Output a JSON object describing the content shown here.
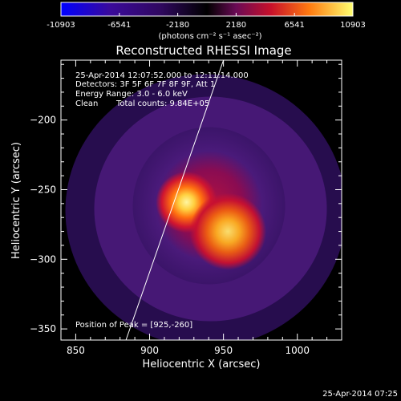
{
  "image": {
    "title": "Reconstructed RHESSI Image",
    "time_range": "25-Apr-2014 12:07:52.000 to 12:11:14.000",
    "detectors": "Detectors: 3F 5F 6F 7F 8F 9F, Att 1",
    "energy_range": "Energy Range: 3.0 - 6.0 keV",
    "algorithm": "Clean",
    "total_counts": "Total counts: 9.84E+05",
    "peak_position": "Position of Peak = [925,-260]",
    "xlabel": "Heliocentric X (arcsec)",
    "ylabel": "Heliocentric Y (arcsec)",
    "x_ticks": [
      "850",
      "900",
      "950",
      "1000"
    ],
    "y_ticks": [
      "-200",
      "-250",
      "-300",
      "-350"
    ],
    "x_range": [
      840,
      1030
    ],
    "y_range": [
      -358,
      -157
    ],
    "colorbar": {
      "tick_labels": [
        "-10903",
        "-6541",
        "-2180",
        "2180",
        "6541",
        "10903"
      ],
      "range": [
        -10903,
        10903
      ],
      "unit_label": "(photons cm⁻² s⁻¹ asec⁻²)"
    },
    "sources": [
      {
        "x": 925,
        "y": -259,
        "sigma": 8,
        "amplitude": 1.0
      },
      {
        "x": 953,
        "y": -280,
        "sigma": 10,
        "amplitude": 0.95
      }
    ],
    "limb_line": {
      "from": [
        884,
        -358
      ],
      "to": [
        950,
        -157
      ]
    },
    "footer_timestamp": "25-Apr-2014 07:25",
    "colors": {
      "background": "#000000",
      "foreground": "#ffffff",
      "halo": "#4a1c7a",
      "mid": "#c0103a",
      "peak": "#ffe060"
    }
  }
}
